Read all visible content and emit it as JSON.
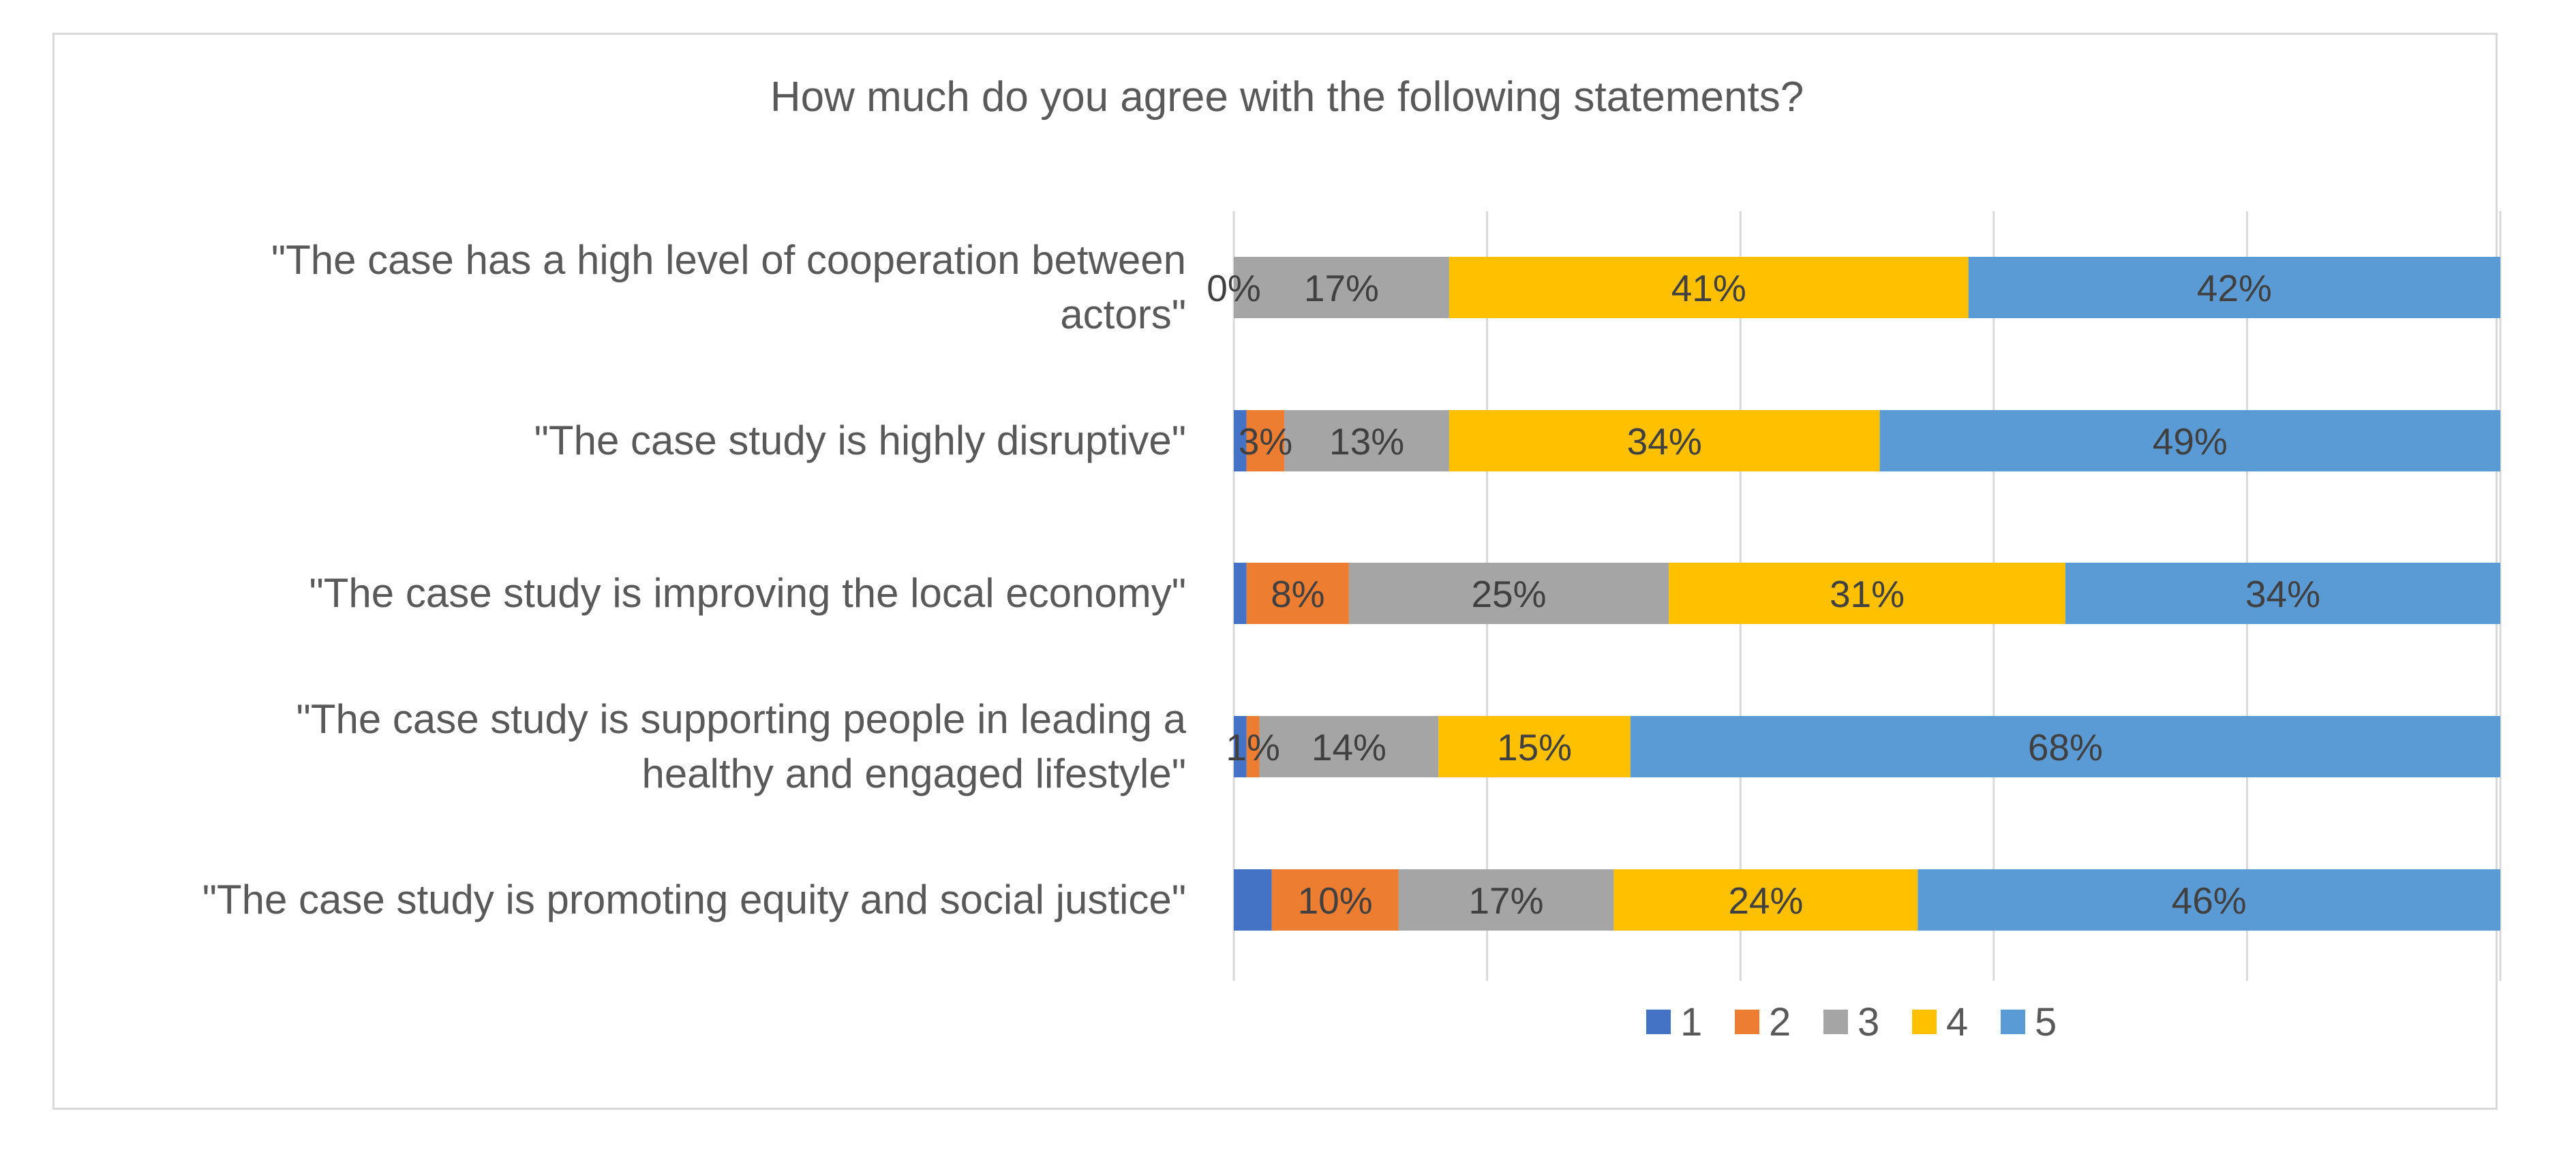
{
  "chart_data": {
    "type": "bar",
    "orientation": "horizontal",
    "stacked": true,
    "normalized": true,
    "title": "How much do you agree with the following statements?",
    "xlabel": "",
    "ylabel": "",
    "xlim": [
      0,
      100
    ],
    "grid": true,
    "legend_position": "bottom",
    "categories": [
      [
        "\"The case has a high level of cooperation between",
        "actors\""
      ],
      [
        "\"The case study is highly disruptive\""
      ],
      [
        "\"The case study is improving the local economy\""
      ],
      [
        "\"The case study is supporting people in leading a",
        "healthy and engaged lifestyle\""
      ],
      [
        "\"The case study is promoting equity and social justice\""
      ]
    ],
    "series": [
      {
        "name": "1",
        "color": "#4472c4",
        "values": [
          0,
          1,
          1,
          1,
          3
        ],
        "labels": [
          "0%",
          "",
          "",
          "",
          ""
        ]
      },
      {
        "name": "2",
        "color": "#ed7d31",
        "values": [
          0,
          3,
          8,
          1,
          10
        ],
        "labels": [
          "",
          "3%",
          "8%",
          "1%",
          "10%"
        ]
      },
      {
        "name": "3",
        "color": "#a5a5a5",
        "values": [
          17,
          13,
          25,
          14,
          17
        ],
        "labels": [
          "17%",
          "13%",
          "25%",
          "14%",
          "17%"
        ]
      },
      {
        "name": "4",
        "color": "#ffc000",
        "values": [
          41,
          34,
          31,
          15,
          24
        ],
        "labels": [
          "41%",
          "34%",
          "31%",
          "15%",
          "24%"
        ]
      },
      {
        "name": "5",
        "color": "#5b9bd5",
        "values": [
          42,
          49,
          34,
          68,
          46
        ],
        "labels": [
          "42%",
          "49%",
          "34%",
          "68%",
          "46%"
        ]
      }
    ]
  }
}
